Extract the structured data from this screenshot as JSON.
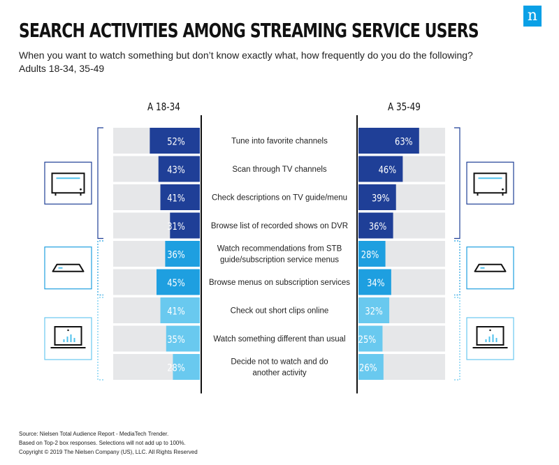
{
  "logo": {
    "text": "n",
    "color": "#0aa0e6"
  },
  "title": "SEARCH ACTIVITIES AMONG STREAMING SERVICE USERS",
  "subtitle": "When you want to watch something but don’t know exactly what, how frequently do you do the following?",
  "subtitle2": "Adults 18-34, 35-49",
  "chart_data": {
    "type": "bar",
    "orientation": "horizontal-diverging",
    "categories": [
      "Tune into favorite channels",
      "Scan through TV channels",
      "Check descriptions on TV guide/menu",
      "Browse list of recorded shows on DVR",
      "Watch recommendations from STB guide/subscription service menus",
      "Browse menus on subscription services",
      "Check out short clips online",
      "Watch something different than usual",
      "Decide not to watch and do another activity"
    ],
    "category_lines": [
      [
        "Tune into favorite channels"
      ],
      [
        "Scan through TV channels"
      ],
      [
        "Check descriptions on TV guide/menu"
      ],
      [
        "Browse list of recorded shows on DVR"
      ],
      [
        "Watch recommendations from STB",
        "guide/subscription service menus"
      ],
      [
        "Browse menus on subscription services"
      ],
      [
        "Check out short clips online"
      ],
      [
        "Watch something different than usual"
      ],
      [
        "Decide not to watch and do",
        "another activity"
      ]
    ],
    "series": [
      {
        "name": "A 18-34",
        "values": [
          52,
          43,
          41,
          31,
          36,
          45,
          41,
          35,
          28
        ],
        "labels": [
          "52%",
          "43%",
          "41%",
          "31%",
          "36%",
          "45%",
          "41%",
          "35%",
          "28%"
        ]
      },
      {
        "name": "A 35-49",
        "values": [
          63,
          46,
          39,
          36,
          28,
          34,
          32,
          25,
          26
        ],
        "labels": [
          "63%",
          "46%",
          "39%",
          "36%",
          "28%",
          "34%",
          "32%",
          "25%",
          "26%"
        ]
      }
    ],
    "xlim": [
      0,
      100
    ],
    "groups": [
      {
        "device": "tv-icon",
        "color": "#1f3f97",
        "rows": [
          0,
          1,
          2,
          3
        ]
      },
      {
        "device": "set-top-box-icon",
        "color": "#1e9fe0",
        "rows": [
          4,
          5
        ]
      },
      {
        "device": "laptop-chart-icon",
        "color": "#69c9ef",
        "rows": [
          6,
          7,
          8
        ]
      }
    ],
    "colors": {
      "background_bar": "#e6e7e9",
      "divider": "#111111"
    }
  },
  "footer": {
    "source": "Source: Nielsen Total Audience Report - MediaTech Trender.",
    "note": "Based on Top-2 box responses. Selections will not add up to 100%.",
    "copyright": "Copyright © 2019 The Nielsen Company (US), LLC. All Rights Reserved"
  }
}
